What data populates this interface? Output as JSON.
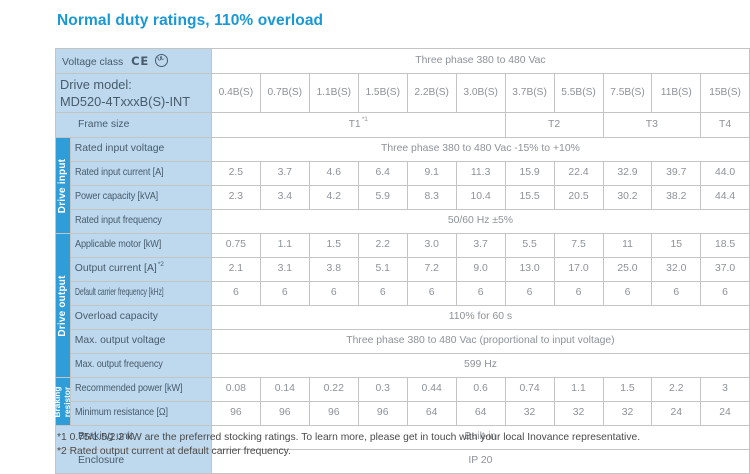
{
  "title": "Normal duty ratings, 110% overload",
  "certifications": {
    "ce_mark": "CE",
    "ul_mark": "UL"
  },
  "table": {
    "columns": [
      "0.4B(S)",
      "0.7B(S)",
      "1.1B(S)",
      "1.5B(S)",
      "2.2B(S)",
      "3.0B(S)",
      "3.7B(S)",
      "5.5B(S)",
      "7.5B(S)",
      "11B(S)",
      "15B(S)"
    ],
    "header": {
      "voltage_class_label": "Voltage class",
      "voltage_class_value": "Three phase 380 to 480 Vac",
      "drive_model_label": [
        "Drive model:",
        "MD520-4TxxxB(S)-INT"
      ],
      "frame_size_label": "Frame size",
      "frame_sizes": [
        {
          "label": "T1",
          "note": "*1",
          "span": 6
        },
        {
          "label": "T2",
          "note": "",
          "span": 2
        },
        {
          "label": "T3",
          "note": "",
          "span": 2
        },
        {
          "label": "T4",
          "note": "",
          "span": 1
        }
      ]
    },
    "sections": [
      {
        "label": "Drive input",
        "rows": [
          {
            "label": "Rated input voltage",
            "span": "Three phase 380 to 480 Vac -15% to +10%"
          },
          {
            "label": "Rated input current [A]",
            "cells": [
              "2.5",
              "3.7",
              "4.6",
              "6.4",
              "9.1",
              "11.3",
              "15.9",
              "22.4",
              "32.9",
              "39.7",
              "44.0"
            ]
          },
          {
            "label": "Power capacity [kVA]",
            "cells": [
              "2.3",
              "3.4",
              "4.2",
              "5.9",
              "8.3",
              "10.4",
              "15.5",
              "20.5",
              "30.2",
              "38.2",
              "44.4"
            ]
          },
          {
            "label": "Rated input frequency",
            "span": "50/60 Hz ±5%"
          }
        ]
      },
      {
        "label": "Drive output",
        "rows": [
          {
            "label": "Applicable motor [kW]",
            "cells": [
              "0.75",
              "1.1",
              "1.5",
              "2.2",
              "3.0",
              "3.7",
              "5.5",
              "7.5",
              "11",
              "15",
              "18.5"
            ]
          },
          {
            "label": "Output current [A]",
            "note": "*2",
            "cells": [
              "2.1",
              "3.1",
              "3.8",
              "5.1",
              "7.2",
              "9.0",
              "13.0",
              "17.0",
              "25.0",
              "32.0",
              "37.0"
            ]
          },
          {
            "label": "Default carrier frequency [kHz]",
            "cells": [
              "6",
              "6",
              "6",
              "6",
              "6",
              "6",
              "6",
              "6",
              "6",
              "6",
              "6"
            ]
          },
          {
            "label": "Overload capacity",
            "span": "110% for 60 s"
          },
          {
            "label": "Max. output voltage",
            "span": "Three phase 380 to 480 Vac (proportional to input voltage)"
          },
          {
            "label": "Max. output frequency",
            "span": "599 Hz"
          }
        ]
      },
      {
        "label": "Braking resistor",
        "rows": [
          {
            "label": "Recommended power [kW]",
            "cells": [
              "0.08",
              "0.14",
              "0.22",
              "0.3",
              "0.44",
              "0.6",
              "0.74",
              "1.1",
              "1.5",
              "2.2",
              "3"
            ]
          },
          {
            "label": "Minimum resistance [Ω]",
            "cells": [
              "96",
              "96",
              "96",
              "96",
              "64",
              "64",
              "32",
              "32",
              "32",
              "24",
              "24"
            ]
          }
        ]
      },
      {
        "label": null,
        "rows": [
          {
            "label": "Braking unit",
            "span": "Built-in"
          },
          {
            "label": "Enclosure",
            "span": "IP 20"
          }
        ]
      }
    ]
  },
  "footnotes": [
    "*1 0.75/1.5/2.2 kW are the preferred stocking ratings. To learn more, please get in touch with your local Inovance representative.",
    "*2 Rated output current at default carrier frequency."
  ],
  "colors": {
    "accent_blue": "#1899d6",
    "section_bar_blue": "#2f9dd8",
    "label_bg_blue": "#bed9ee",
    "label_text": "#475b6b",
    "data_text": "#8d9298",
    "grid_border": "#c4c4c4"
  }
}
